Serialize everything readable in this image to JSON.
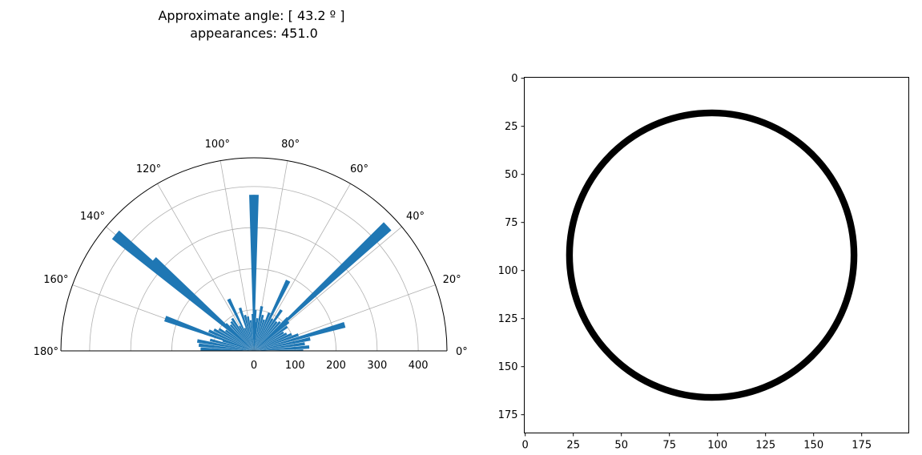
{
  "chart_data": [
    {
      "type": "bar",
      "projection": "polar",
      "title": "Approximate angle: [ 43.2 º ]",
      "subtitle": "appearances: 451.0",
      "bar_color": "#1f77b4",
      "theta_range_deg": [
        0,
        180
      ],
      "theta_tick_labels": [
        "0°",
        "20°",
        "40°",
        "60°",
        "80°",
        "100°",
        "120°",
        "140°",
        "160°",
        "180°"
      ],
      "theta_ticks_deg": [
        0,
        20,
        40,
        60,
        80,
        100,
        120,
        140,
        160,
        180
      ],
      "r_range": [
        0,
        470
      ],
      "r_ticks": [
        0,
        100,
        200,
        300,
        400
      ],
      "r_tick_labels": [
        "0",
        "100",
        "200",
        "300",
        "400"
      ],
      "grid": true,
      "series": [
        {
          "angle_deg": [
            0,
            4,
            8,
            12,
            16,
            20,
            24,
            28,
            32,
            36,
            40,
            43,
            44,
            48,
            52,
            56,
            60,
            64,
            68,
            72,
            76,
            80,
            84,
            86,
            88,
            90,
            92,
            96,
            100,
            104,
            108,
            112,
            116,
            120,
            124,
            128,
            132,
            136,
            138,
            140,
            144,
            148,
            152,
            156,
            160,
            162,
            166,
            170,
            174,
            178
          ],
          "values": [
            120,
            135,
            125,
            140,
            230,
            115,
            100,
            90,
            85,
            100,
            110,
            445,
            115,
            95,
            90,
            120,
            90,
            190,
            100,
            80,
            90,
            110,
            80,
            70,
            100,
            380,
            90,
            75,
            85,
            90,
            110,
            60,
            140,
            70,
            95,
            90,
            85,
            95,
            330,
            440,
            85,
            100,
            110,
            120,
            230,
            80,
            110,
            140,
            135,
            130
          ]
        }
      ]
    },
    {
      "type": "heatmap",
      "colormap": "gray_r",
      "x_ticks": [
        0,
        25,
        50,
        75,
        100,
        125,
        150,
        175
      ],
      "x_tick_labels": [
        "0",
        "25",
        "50",
        "75",
        "100",
        "125",
        "150",
        "175"
      ],
      "y_ticks": [
        0,
        25,
        50,
        75,
        100,
        125,
        150,
        175
      ],
      "y_tick_labels": [
        "0",
        "25",
        "50",
        "75",
        "100",
        "125",
        "150",
        "175"
      ],
      "xlim": [
        -0.5,
        199.5
      ],
      "ylim": [
        184.5,
        -0.5
      ],
      "circle": {
        "center_x": 97,
        "center_y": 92,
        "radius": 74,
        "ring_width": 3.5
      }
    }
  ]
}
